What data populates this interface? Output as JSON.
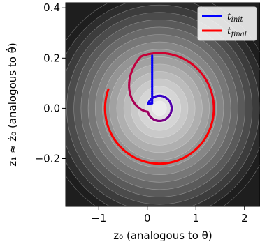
{
  "chart_data": {
    "type": "line",
    "xlabel": "z₀ (analogous to θ)",
    "ylabel": "z₁ ≈ ż₀ (analogous to θ̇)",
    "xlim": [
      -1.68,
      2.32
    ],
    "ylim": [
      -0.39,
      0.42
    ],
    "x_ticks": [
      -1,
      0,
      1,
      2
    ],
    "x_tick_labels": [
      "−1",
      "0",
      "1",
      "2"
    ],
    "y_ticks": [
      -0.2,
      0.0,
      0.2,
      0.4
    ],
    "y_tick_labels": [
      "−0.2",
      "0.0",
      "0.2",
      "0.4"
    ],
    "grid": false,
    "legend": "top-right",
    "background": {
      "kind": "filled-contour",
      "center": [
        0.25,
        0.0
      ],
      "colormap": "greys",
      "levels": 16
    },
    "series": [
      {
        "name": "t_init",
        "color": "#0000ff"
      },
      {
        "name": "t_final",
        "color": "#ff0000"
      }
    ],
    "trajectory": {
      "start": [
        0.1,
        0.21
      ],
      "initial_circle": {
        "center": [
          0.25,
          0.0
        ],
        "rx": 0.25,
        "ry": 0.05
      },
      "final_circle": {
        "center": [
          0.25,
          0.0
        ],
        "rx": 1.12,
        "ry": 0.22
      }
    },
    "legend_labels": [
      {
        "main": "t",
        "sub": "init"
      },
      {
        "main": "t",
        "sub": "final"
      }
    ]
  }
}
